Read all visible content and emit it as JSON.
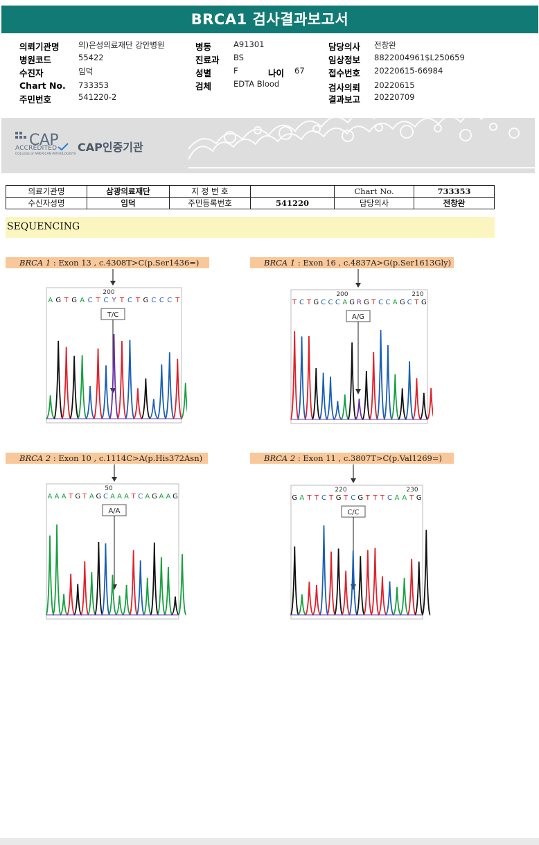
{
  "title": "BRCA1 검사결과보고서",
  "header": {
    "col1": [
      {
        "label": "의뢰기관명",
        "value": "의)은성의료재단 강안병원"
      },
      {
        "label": "병원코드",
        "value": "55422"
      },
      {
        "label": "수진자",
        "value": "임덕"
      },
      {
        "label": "Chart No.",
        "value": "733353"
      },
      {
        "label": "주민번호",
        "value": "541220-2"
      }
    ],
    "col2": [
      {
        "label": "병동",
        "value": "A91301"
      },
      {
        "label": "진료과",
        "value": "BS"
      },
      {
        "label": "성별",
        "value": "F"
      },
      {
        "label": "검체",
        "value": "EDTA Blood"
      }
    ],
    "age": {
      "label": "나이",
      "value": "67"
    },
    "col3": [
      {
        "label": "담당의사",
        "value": "전창완"
      },
      {
        "label": "임상정보",
        "value": "8822004961$L250659"
      },
      {
        "label": "접수번호",
        "value": "20220615-66984"
      },
      {
        "label": "검사의뢰",
        "value": "20220615"
      },
      {
        "label": "결과보고",
        "value": "20220709"
      }
    ]
  },
  "cap": {
    "logo": "CAP",
    "accredited": "ACCREDITED",
    "college": "COLLEGE of AMERICAN PATHOLOGISTS",
    "cert_label": "CAP인증기관"
  },
  "info_table": {
    "row1": [
      "의료기관명",
      "삼광의료재단",
      "지 정 번 호",
      "",
      "Chart No.",
      "733353"
    ],
    "row2": [
      "수신자성명",
      "임덕",
      "주민등록번호",
      "541220",
      "담당의사",
      "전창완"
    ]
  },
  "section_title": "SEQUENCING",
  "variants": [
    {
      "gene": "BRCA 1",
      "detail": " : Exon 13 , c.4308T>C(p.Ser1436=)",
      "sequence": "AGTGACTCYTCTGCCCT",
      "positions": [
        "200"
      ],
      "genotype": "T/C"
    },
    {
      "gene": "BRCA 1",
      "detail": " : Exon 16 , c.4837A>G(p.Ser1613Gly)",
      "sequence": "TCTGCCCAGRGTCCAGCTG",
      "positions": [
        "200",
        "210"
      ],
      "genotype": "A/G"
    },
    {
      "gene": "BRCA 2",
      "detail": " : Exon 10 , c.1114C>A(p.His372Asn)",
      "sequence": "AAATGTAGCAAATCAGAAG",
      "positions": [
        "50"
      ],
      "genotype": "A/A"
    },
    {
      "gene": "BRCA 2",
      "detail": " : Exon 11 , c.3807T>C(p.Val1269=)",
      "sequence": "GATTCTGTCGTTTCAATG",
      "positions": [
        "220",
        "230"
      ],
      "genotype": "C/C"
    }
  ],
  "colors": {
    "title_bg": "#127a74",
    "A": "#18a040",
    "C": "#1a5fb4",
    "G": "#111111",
    "T": "#e0202a",
    "label_bg": "#f9c89a",
    "section_bg": "#fbf6bf"
  }
}
